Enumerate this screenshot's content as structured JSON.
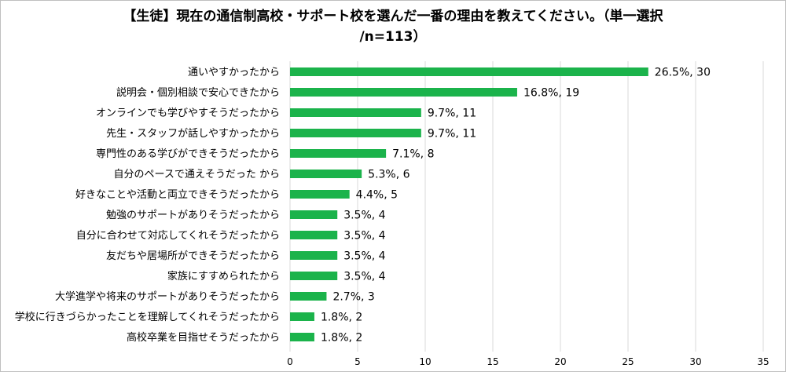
{
  "title_line1": "【生徒】現在の通信制高校・サポート校を選んだ一番の理由を教えてください。（単一選択",
  "title_line2": "/n=113）",
  "chart_data": {
    "type": "bar",
    "orientation": "horizontal",
    "title": "【生徒】現在の通信制高校・サポート校を選んだ一番の理由を教えてください。（単一選択 /n=113）",
    "categories": [
      "通いやすかったから",
      "説明会・個別相談で安心できたから",
      "オンラインでも学びやすそうだったから",
      "先生・スタッフが話しやすかったから",
      "専門性のある学びができそうだったから",
      "自分のペースで通えそうだった から",
      "好きなことや活動と両立できそうだったから",
      "勉強のサポートがありそうだったから",
      "自分に合わせて対応してくれそうだったから",
      "友だちや居場所ができそうだったから",
      "家族にすすめられたから",
      "大学進学や将来のサポートがありそうだったから",
      "学校に行きづらかったことを理解してくれそうだったから",
      "高校卒業を目指せそうだったから"
    ],
    "values": [
      26.5,
      16.8,
      9.7,
      9.7,
      7.1,
      5.3,
      4.4,
      3.5,
      3.5,
      3.5,
      3.5,
      2.7,
      1.8,
      1.8
    ],
    "counts": [
      30,
      19,
      11,
      11,
      8,
      6,
      5,
      4,
      4,
      4,
      4,
      3,
      2,
      2
    ],
    "data_labels": [
      "26.5%, 30",
      "16.8%, 19",
      "9.7%, 11",
      "9.7%, 11",
      "7.1%, 8",
      "5.3%, 6",
      "4.4%, 5",
      "3.5%, 4",
      "3.5%, 4",
      "3.5%, 4",
      "3.5%, 4",
      "2.7%, 3",
      "1.8%, 2",
      "1.8%, 2"
    ],
    "xlim": [
      0,
      35
    ],
    "xticks": [
      "0",
      "5",
      "10",
      "15",
      "20",
      "25",
      "30",
      "35"
    ],
    "grid": "vertical",
    "bar_color": "#1bb34b",
    "grid_color": "#d9d9d9"
  }
}
